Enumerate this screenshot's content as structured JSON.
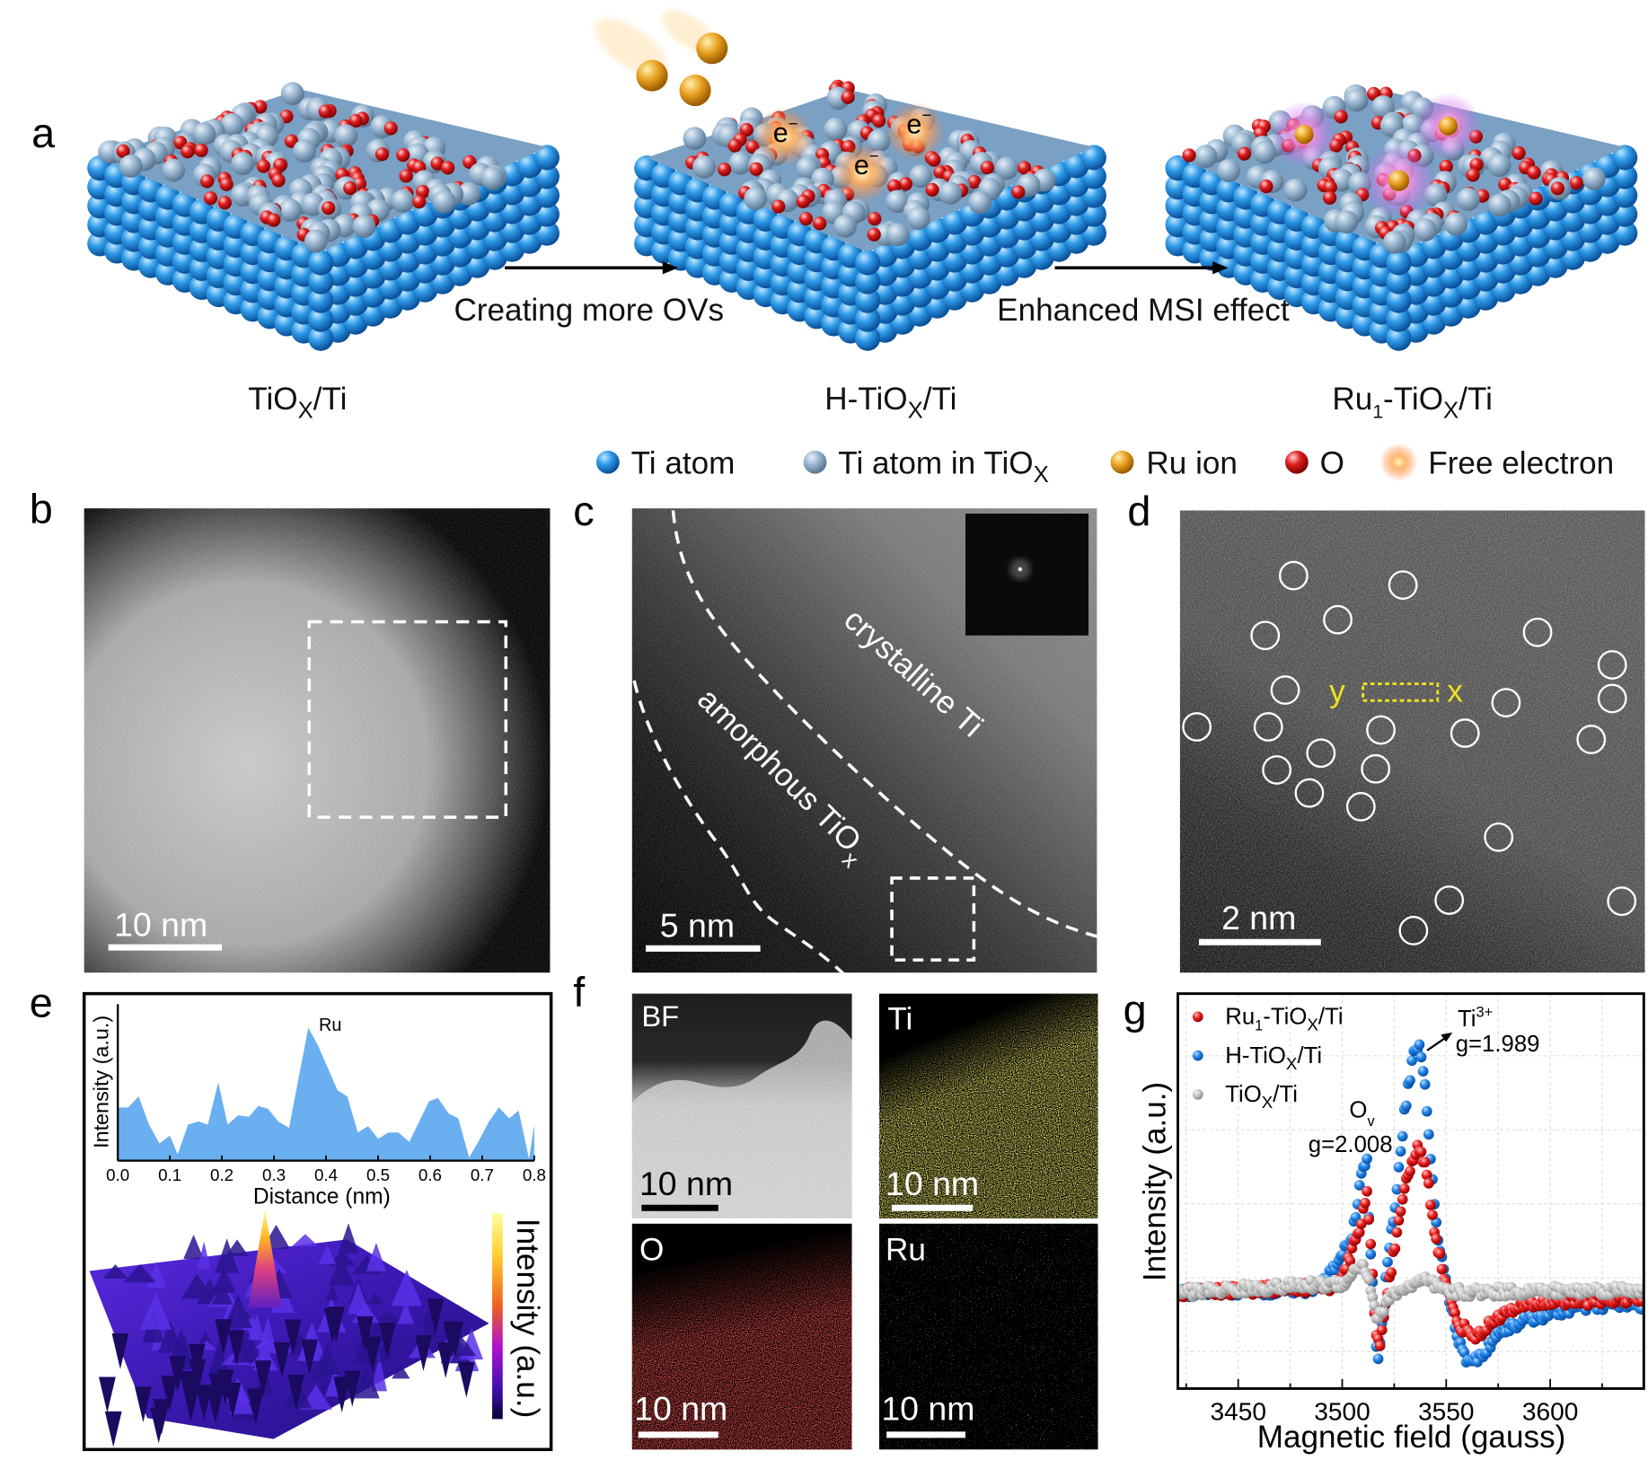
{
  "panel_labels": {
    "a": "a",
    "b": "b",
    "c": "c",
    "d": "d",
    "e": "e",
    "f": "f",
    "g": "g"
  },
  "panel_a": {
    "arrow1_label": "Creating more OVs",
    "arrow2_label": "Enhanced MSI effect",
    "electron_label": "e",
    "electron_sup": "−",
    "samples": [
      {
        "pre": "TiO",
        "sub": "X",
        "post": "/Ti"
      },
      {
        "pre": "H-TiO",
        "sub": "X",
        "post": "/Ti"
      },
      {
        "pre": "Ru",
        "sub1": "1",
        "mid": "-TiO",
        "sub": "X",
        "post": "/Ti"
      }
    ],
    "legend": [
      {
        "label": "Ti atom",
        "color": "#2f8fe0"
      },
      {
        "label": "Ti atom in TiO",
        "sub": "X",
        "color": "#8fb4d6"
      },
      {
        "label": "Ru ion",
        "color": "#e8a020"
      },
      {
        "label": "O",
        "color": "#e02525"
      },
      {
        "label": "Free electron",
        "color": "#ffb060"
      }
    ]
  },
  "panel_b": {
    "scale_bar": "10 nm"
  },
  "panel_c": {
    "scale_bar": "5 nm",
    "region1": "crystalline Ti",
    "region2_pre": "amorphous TiO",
    "region2_sub": "x"
  },
  "panel_d": {
    "scale_bar": "2 nm",
    "line_start": "y",
    "line_end": "x"
  },
  "panel_e": {
    "colorbar_label": "Intensity (a.u.)"
  },
  "panel_f": {
    "maps": [
      {
        "label": "BF",
        "scale_bar": "10 nm"
      },
      {
        "label": "Ti",
        "scale_bar": "10 nm",
        "color": "#d8d030"
      },
      {
        "label": "O",
        "scale_bar": "10 nm",
        "color": "#d01818"
      },
      {
        "label": "Ru",
        "scale_bar": "10 nm",
        "color": "#ffffff"
      }
    ]
  },
  "chart_data": [
    {
      "panel": "e",
      "type": "area",
      "xlabel": "Distance (nm)",
      "ylabel": "Intensity (a.u.)",
      "xlim": [
        0,
        0.8
      ],
      "ylim": [
        0,
        1
      ],
      "xticks": [
        "0.0",
        "0.1",
        "0.2",
        "0.3",
        "0.4",
        "0.5",
        "0.6",
        "0.7",
        "0.8"
      ],
      "annotation": "Ru",
      "color": "#6aaff0",
      "x": [
        0,
        0.02,
        0.04,
        0.06,
        0.08,
        0.1,
        0.115,
        0.135,
        0.155,
        0.173,
        0.193,
        0.211,
        0.231,
        0.252,
        0.27,
        0.289,
        0.308,
        0.329,
        0.366,
        0.384,
        0.422,
        0.441,
        0.461,
        0.481,
        0.5,
        0.52,
        0.539,
        0.56,
        0.598,
        0.615,
        0.636,
        0.654,
        0.675,
        0.694,
        0.713,
        0.732,
        0.752,
        0.77,
        0.79,
        0.8
      ],
      "y": [
        0.34,
        0.34,
        0.41,
        0.23,
        0.11,
        0.16,
        0.04,
        0.23,
        0.25,
        0.23,
        0.5,
        0.23,
        0.29,
        0.28,
        0.35,
        0.33,
        0.25,
        0.21,
        0.85,
        0.74,
        0.45,
        0.41,
        0.18,
        0.22,
        0.14,
        0.18,
        0.18,
        0.12,
        0.38,
        0.4,
        0.3,
        0.27,
        0.02,
        0.13,
        0.25,
        0.34,
        0.27,
        0.32,
        0.01,
        0.23
      ]
    },
    {
      "panel": "g",
      "type": "scatter",
      "xlabel": "Magnetic field (gauss)",
      "ylabel": "Intensity (a.u.)",
      "xlim": [
        3421,
        3645
      ],
      "ylim": [
        -3.25,
        10.1
      ],
      "xticks": [
        3450,
        3500,
        3550,
        3600
      ],
      "grid": true,
      "legend_position": "top-left",
      "annotations": [
        {
          "label": "Ti",
          "sup": "3+",
          "value": "g=1.989"
        },
        {
          "label": "O",
          "sub": "v",
          "value": "g=2.008"
        }
      ],
      "series": [
        {
          "name_pre": "H-TiO",
          "name_sub": "X",
          "name_post": "/Ti",
          "color": "#1f82e8",
          "x": [
            3421,
            3485,
            3495,
            3505,
            3510,
            3512,
            3513,
            3515,
            3517,
            3519,
            3522,
            3526,
            3530,
            3534,
            3537,
            3540,
            3543,
            3546,
            3550,
            3553,
            3556,
            3560,
            3567,
            3575,
            3590,
            3610,
            3630,
            3645
          ],
          "y": [
            0,
            0.1,
            0.7,
            2.0,
            4.3,
            4.4,
            2.3,
            -0.3,
            -2.4,
            -1.3,
            1.3,
            3.3,
            6.1,
            8.0,
            8.3,
            6.8,
            4.1,
            1.8,
            0.3,
            -0.7,
            -1.7,
            -2.25,
            -2.2,
            -1.3,
            -0.9,
            -0.55,
            -0.4,
            -0.5
          ]
        },
        {
          "name_pre": "Ru",
          "name_sub1": "1",
          "name_mid": "-TiO",
          "name_sub": "X",
          "name_post": "/Ti",
          "color": "#e82020",
          "x": [
            3421,
            3495,
            3500,
            3508,
            3512,
            3514,
            3516,
            3518,
            3521,
            3526,
            3531,
            3536,
            3540,
            3544,
            3548,
            3552,
            3556,
            3565,
            3575,
            3590,
            3605,
            3645
          ],
          "y": [
            0,
            0.2,
            0.4,
            2.1,
            3.3,
            1.3,
            -1.3,
            -1.9,
            -0.2,
            1.8,
            3.8,
            4.9,
            4.4,
            2.3,
            0.8,
            -0.3,
            -1.1,
            -1.5,
            -0.8,
            -0.4,
            -0.3,
            -0.2
          ]
        },
        {
          "name_pre": "TiO",
          "name_sub": "X",
          "name_post": "/Ti",
          "color": "#c4c4c4",
          "x": [
            3421,
            3500,
            3510,
            3514,
            3517,
            3520,
            3525,
            3540,
            3550,
            3645
          ],
          "y": [
            0,
            0.3,
            1.0,
            0.1,
            -1.0,
            -0.5,
            0,
            0.4,
            0,
            0.1
          ]
        }
      ]
    }
  ]
}
